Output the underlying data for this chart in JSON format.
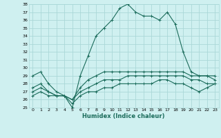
{
  "xlabel": "Humidex (Indice chaleur)",
  "hours": [
    0,
    1,
    2,
    3,
    4,
    5,
    6,
    7,
    8,
    9,
    10,
    11,
    12,
    13,
    14,
    15,
    16,
    17,
    18,
    19,
    20,
    21,
    22,
    23
  ],
  "line_max": [
    29,
    29.5,
    28,
    27,
    26.5,
    25,
    29,
    31.5,
    34,
    35,
    36,
    37.5,
    38,
    37,
    36.5,
    36.5,
    36,
    37,
    35.5,
    32,
    29.5,
    29,
    29,
    29
  ],
  "line_high": [
    27.5,
    28.0,
    27.0,
    26.5,
    26.5,
    26.0,
    27.5,
    28.5,
    29.0,
    29.5,
    29.5,
    29.5,
    29.5,
    29.5,
    29.5,
    29.5,
    29.5,
    29.5,
    29.5,
    29.5,
    29.0,
    29.0,
    29.0,
    28.5
  ],
  "line_mid": [
    27.0,
    27.5,
    27.0,
    26.5,
    26.5,
    26.0,
    27.0,
    27.5,
    28.0,
    28.5,
    28.5,
    28.5,
    29.0,
    29.0,
    29.0,
    29.0,
    29.0,
    29.0,
    29.0,
    29.0,
    28.5,
    28.5,
    28.0,
    28.0
  ],
  "line_min": [
    26.5,
    27.0,
    26.5,
    26.5,
    26.5,
    25.5,
    26.5,
    27.0,
    27.0,
    27.5,
    27.5,
    28.0,
    28.0,
    28.0,
    28.0,
    28.0,
    28.5,
    28.5,
    28.0,
    28.0,
    27.5,
    27.0,
    27.5,
    28.0
  ],
  "bg_color": "#cff0f0",
  "grid_color": "#aad8d8",
  "line_color": "#1a6b5a",
  "ylim": [
    25,
    38
  ],
  "yticks": [
    25,
    26,
    27,
    28,
    29,
    30,
    31,
    32,
    33,
    34,
    35,
    36,
    37,
    38
  ]
}
